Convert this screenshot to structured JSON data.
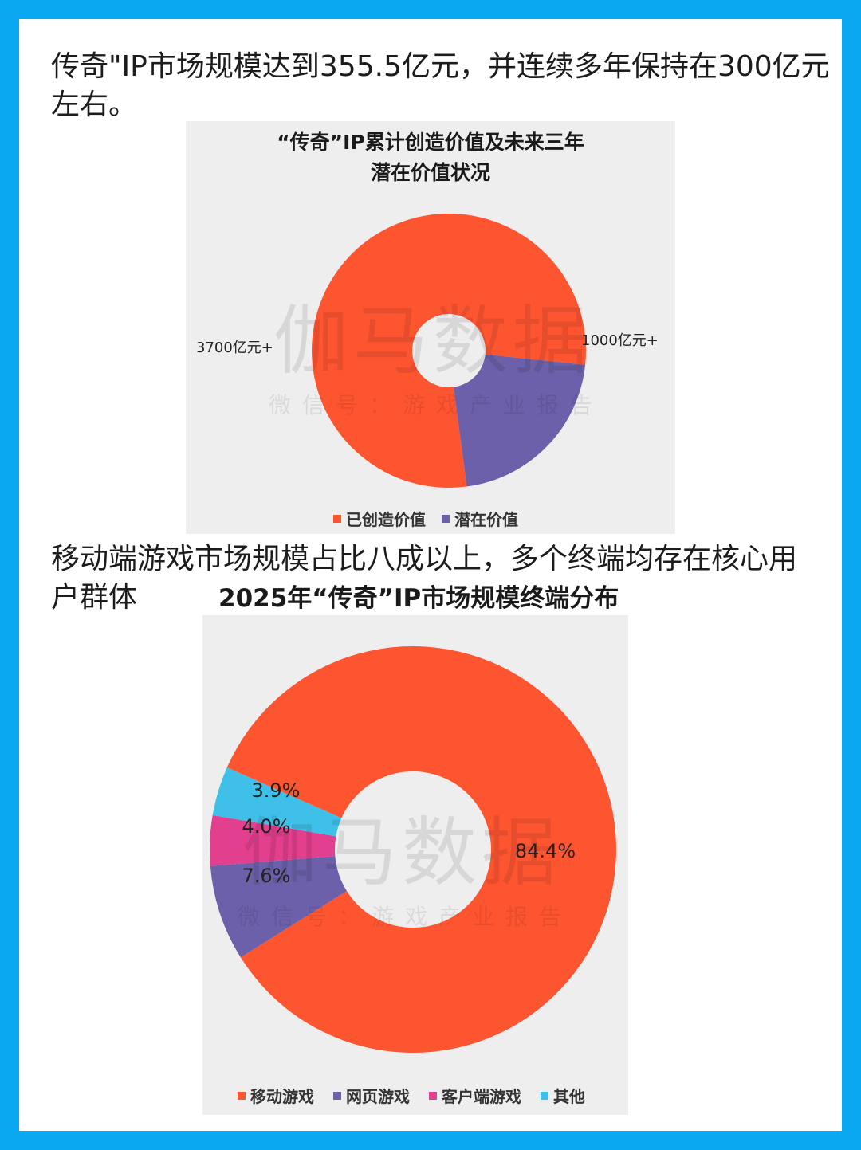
{
  "headings": {
    "h1": "传奇\"IP市场规模达到355.5亿元，并连续多年保持在300亿元左右。",
    "h2": "移动端游戏市场规模占比八成以上，多个终端均存在核心用户群体"
  },
  "watermark": {
    "main": "伽马数据",
    "sub": "微信号：游戏产业报告"
  },
  "chart_data": [
    {
      "type": "pie",
      "title_lines": [
        "“传奇”IP累计创造价值及未来三年",
        "潜在价值状况"
      ],
      "categories": [
        "已创造价值",
        "潜在价值"
      ],
      "values": [
        3700,
        1000
      ],
      "data_labels": [
        "3700亿元+",
        "1000亿元+"
      ],
      "colors": [
        "#fe5531",
        "#6b60a9"
      ],
      "legend": "bottom"
    },
    {
      "type": "pie",
      "title": "2025年“传奇”IP市场规模终端分布",
      "categories": [
        "移动游戏",
        "网页游戏",
        "客户端游戏",
        "其他"
      ],
      "values": [
        84.4,
        7.6,
        4.0,
        3.9
      ],
      "data_labels": [
        "84.4%",
        "7.6%",
        "4.0%",
        "3.9%"
      ],
      "colors": [
        "#fe5531",
        "#6b60a9",
        "#e23f8f",
        "#3fc0e8"
      ],
      "legend": "bottom"
    }
  ]
}
